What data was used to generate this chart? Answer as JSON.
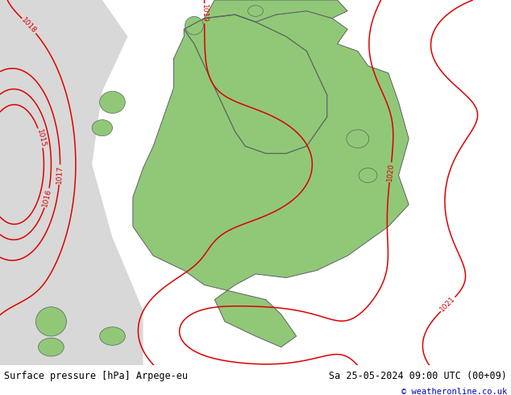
{
  "title_left": "Surface pressure [hPa] Arpege-eu",
  "title_right": "Sa 25-05-2024 09:00 UTC (00+09)",
  "credit": "© weatheronline.co.uk",
  "sea_color": "#b0d8b0",
  "land_color": "#90c878",
  "ocean_left_color": "#d8d8d8",
  "border_color": "#606060",
  "contour_color": "#dd0000",
  "text_color": "#000000",
  "footer_bg": "#ffffff",
  "credit_color": "#0000bb",
  "fig_width": 6.34,
  "fig_height": 4.9,
  "dpi": 100,
  "label_fontsize": 6.5,
  "footer_fontsize": 8.5,
  "credit_fontsize": 7.5
}
